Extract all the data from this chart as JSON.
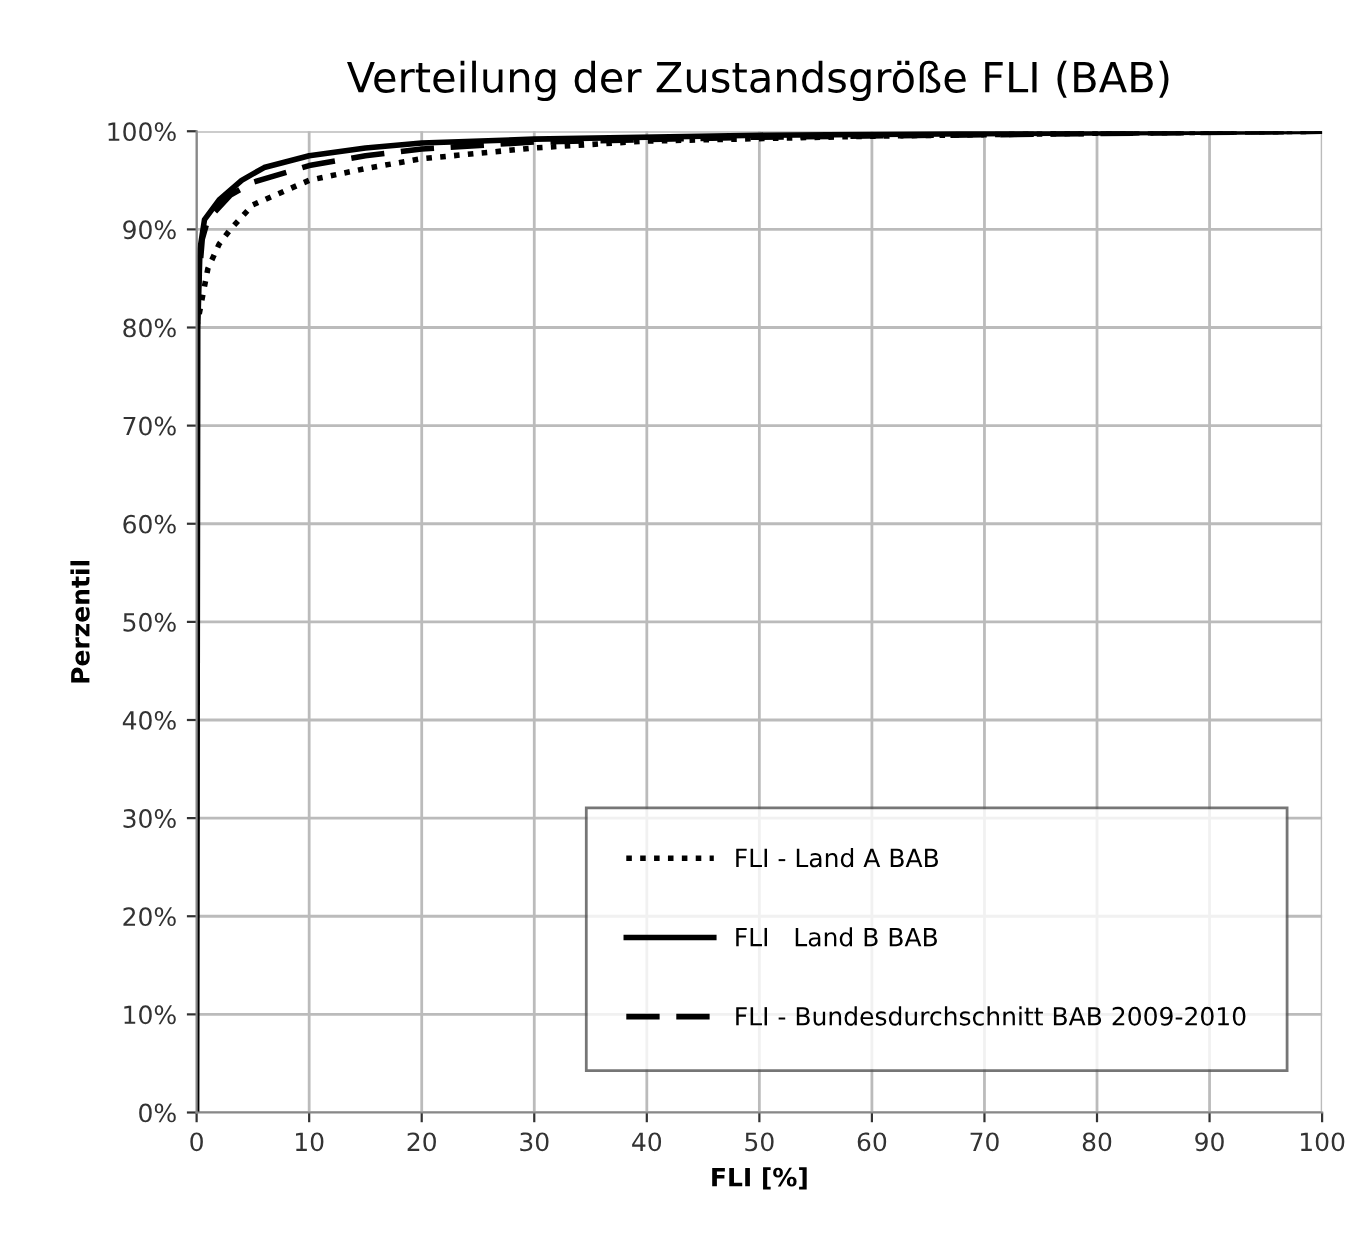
{
  "chart_data": {
    "type": "line",
    "title": "Verteilung der Zustandsgröße FLI (BAB)",
    "xlabel": "FLI [%]",
    "ylabel": "Perzentil",
    "xlim": [
      0,
      100
    ],
    "xticks": [
      0,
      10,
      20,
      30,
      40,
      50,
      60,
      70,
      80,
      90,
      100
    ],
    "ylim": [
      0,
      100
    ],
    "yticks": [
      {
        "value": 0,
        "label": "0%"
      },
      {
        "value": 10,
        "label": "10%"
      },
      {
        "value": 20,
        "label": "20%"
      },
      {
        "value": 30,
        "label": "30%"
      },
      {
        "value": 40,
        "label": "40%"
      },
      {
        "value": 50,
        "label": "50%"
      },
      {
        "value": 60,
        "label": "60%"
      },
      {
        "value": 70,
        "label": "70%"
      },
      {
        "value": 80,
        "label": "80%"
      },
      {
        "value": 90,
        "label": "90%"
      },
      {
        "value": 100,
        "label": "100%"
      }
    ],
    "grid": true,
    "legend": "bottom right",
    "marker": "none",
    "series": [
      {
        "name": "FLI - Land A BAB",
        "color": "#000000",
        "line_style": "dotted",
        "x": [
          0,
          0.5,
          1,
          2,
          3,
          5,
          8,
          10,
          15,
          20,
          30,
          40,
          60,
          80,
          100
        ],
        "values": [
          80,
          83,
          86,
          88.5,
          90,
          92.5,
          94,
          95,
          96.2,
          97.2,
          98.3,
          99,
          99.5,
          99.8,
          100
        ]
      },
      {
        "name": "FLI   Land B BAB",
        "color": "#000000",
        "line_style": "solid",
        "x": [
          0,
          0.1,
          0.3,
          0.7,
          2,
          4,
          6,
          10,
          15,
          20,
          30,
          50,
          100
        ],
        "values": [
          0,
          80,
          88,
          91,
          93,
          95,
          96.3,
          97.5,
          98.3,
          98.8,
          99.2,
          99.6,
          100
        ]
      },
      {
        "name": "FLI - Bundesdurchschnitt BAB 2009-2010",
        "color": "#000000",
        "line_style": "dashed",
        "x": [
          0,
          0.5,
          1,
          3,
          5,
          10,
          15,
          20,
          30,
          50,
          100
        ],
        "values": [
          82,
          89,
          91,
          93.5,
          94.8,
          96.5,
          97.5,
          98.2,
          98.9,
          99.4,
          100
        ]
      }
    ]
  }
}
